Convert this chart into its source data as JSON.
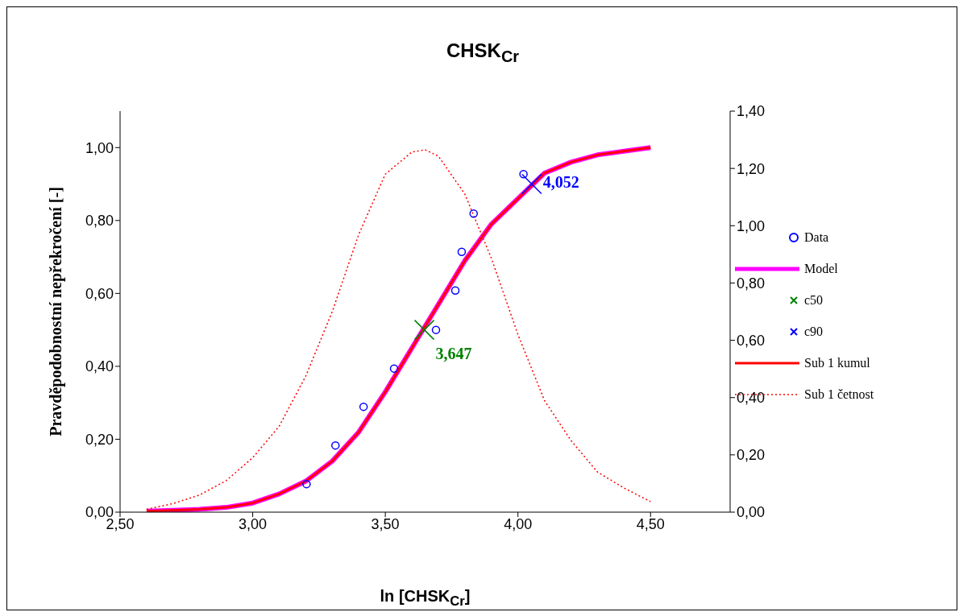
{
  "chart_data": {
    "type": "line",
    "title": "CHSK$_{Cr}$",
    "xlabel": "ln [CHSK$_{Cr}$]",
    "ylabel": "Pravděpodobnostní nepřekročení [-]",
    "xlim": [
      2.5,
      4.8
    ],
    "xticks": [
      {
        "value": 2.5,
        "label": "2,50"
      },
      {
        "value": 3,
        "label": "3,00"
      },
      {
        "value": 3.5,
        "label": "3,50"
      },
      {
        "value": 4,
        "label": "4,00"
      },
      {
        "value": 4.5,
        "label": "4,50"
      }
    ],
    "ylim": [
      0,
      1.1
    ],
    "yticks": [
      {
        "value": 0,
        "label": "0,00"
      },
      {
        "value": 0.2,
        "label": "0,20"
      },
      {
        "value": 0.4,
        "label": "0,40"
      },
      {
        "value": 0.6,
        "label": "0,60"
      },
      {
        "value": 0.8,
        "label": "0,80"
      },
      {
        "value": 1,
        "label": "1,00"
      }
    ],
    "y2lim": [
      0,
      1.4
    ],
    "y2ticks": [
      {
        "value": 0,
        "label": "0,00"
      },
      {
        "value": 0.2,
        "label": "0,20"
      },
      {
        "value": 0.4,
        "label": "0,40"
      },
      {
        "value": 0.6,
        "label": "0,60"
      },
      {
        "value": 0.8,
        "label": "0,80"
      },
      {
        "value": 1,
        "label": "1,00"
      },
      {
        "value": 1.2,
        "label": "1,20"
      },
      {
        "value": 1.4,
        "label": "1,40"
      }
    ],
    "grid": false,
    "legend": "right",
    "series": [
      {
        "name": "Data",
        "type": "scatter",
        "marker": "circle",
        "color": "#0000ff",
        "x": [
          3.203,
          3.312,
          3.418,
          3.533,
          3.691,
          3.764,
          3.788,
          3.833,
          4.021
        ],
        "values": [
          0.077,
          0.183,
          0.289,
          0.394,
          0.5,
          0.608,
          0.714,
          0.819,
          0.927
        ]
      },
      {
        "name": "Model",
        "color": "#ff00ff",
        "x": [
          2.6,
          2.7,
          2.8,
          2.9,
          3.0,
          3.1,
          3.2,
          3.3,
          3.4,
          3.5,
          3.6,
          3.7,
          3.8,
          3.9,
          4.0,
          4.1,
          4.2,
          4.3,
          4.4,
          4.5
        ],
        "values": [
          0.003,
          0.005,
          0.008,
          0.013,
          0.025,
          0.05,
          0.085,
          0.14,
          0.22,
          0.33,
          0.45,
          0.57,
          0.69,
          0.79,
          0.86,
          0.93,
          0.96,
          0.98,
          0.99,
          1.0
        ]
      },
      {
        "name": "c50",
        "type": "scatter",
        "marker": "cross",
        "color": "#008000",
        "x": [
          3.647
        ],
        "values": [
          0.5
        ]
      },
      {
        "name": "c90",
        "type": "scatter",
        "marker": "cross",
        "color": "#0000ff",
        "x": [
          4.052
        ],
        "values": [
          0.9
        ]
      },
      {
        "name": "Sub 1 kumul",
        "color": "#ff0000",
        "x": [
          2.6,
          2.7,
          2.8,
          2.9,
          3.0,
          3.1,
          3.2,
          3.3,
          3.4,
          3.5,
          3.6,
          3.7,
          3.8,
          3.9,
          4.0,
          4.1,
          4.2,
          4.3,
          4.4,
          4.5
        ],
        "values": [
          0.003,
          0.005,
          0.008,
          0.013,
          0.025,
          0.05,
          0.085,
          0.14,
          0.22,
          0.33,
          0.45,
          0.57,
          0.69,
          0.79,
          0.86,
          0.93,
          0.96,
          0.98,
          0.99,
          1.0
        ]
      },
      {
        "name": "Sub 1 četnost",
        "line_style": "dotted",
        "axis": "y2",
        "color": "#ff0000",
        "x": [
          2.6,
          2.7,
          2.8,
          2.9,
          3.0,
          3.1,
          3.2,
          3.3,
          3.4,
          3.5,
          3.6,
          3.65,
          3.7,
          3.8,
          3.9,
          4.0,
          4.1,
          4.2,
          4.3,
          4.4,
          4.5
        ],
        "values": [
          0.01,
          0.03,
          0.06,
          0.11,
          0.19,
          0.3,
          0.475,
          0.7,
          0.97,
          1.18,
          1.257,
          1.265,
          1.243,
          1.11,
          0.886,
          0.62,
          0.39,
          0.25,
          0.14,
          0.084,
          0.037
        ]
      }
    ],
    "annotations": [
      {
        "text": "3,647",
        "x": 3.647,
        "y": 0.5
      },
      {
        "text": "4,052",
        "x": 4.052,
        "y": 0.9
      }
    ]
  }
}
